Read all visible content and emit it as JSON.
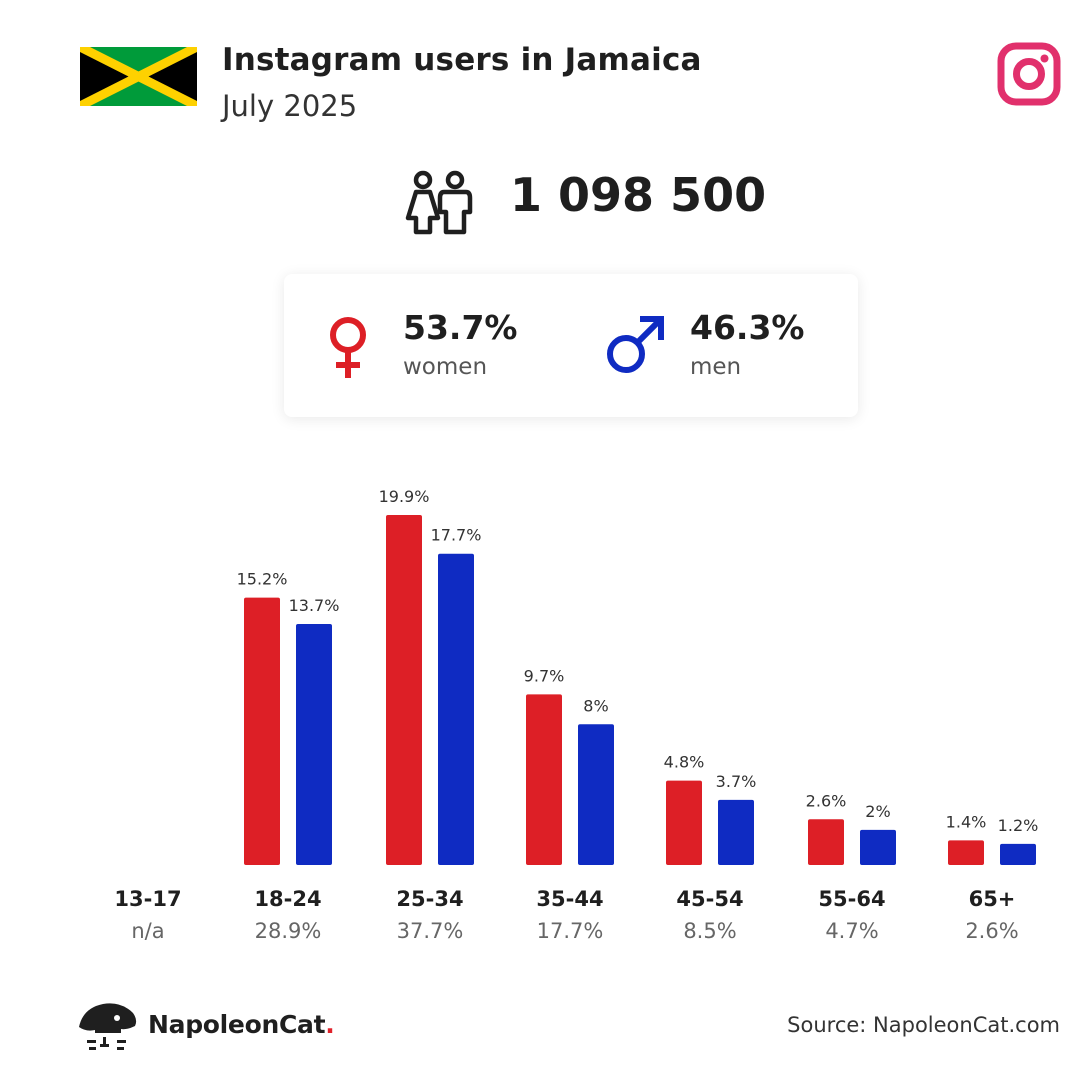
{
  "header": {
    "title": "Instagram users in Jamaica",
    "subtitle": "July 2025",
    "flag_colors": {
      "green": "#009b3a",
      "gold": "#fed100",
      "black": "#000000"
    },
    "brand_icon": "instagram-icon",
    "brand_color": "#e1306c"
  },
  "summary": {
    "total": "1 098 500",
    "total_icon": "people-icon",
    "women": {
      "pct": "53.7%",
      "label": "women",
      "color": "#dd1f26",
      "icon": "female-symbol-icon"
    },
    "men": {
      "pct": "46.3%",
      "label": "men",
      "color": "#0f2bc2",
      "icon": "male-symbol-icon"
    }
  },
  "chart_data": {
    "type": "bar",
    "categories": [
      "13-17",
      "18-24",
      "25-34",
      "35-44",
      "45-54",
      "55-64",
      "65+"
    ],
    "category_totals": [
      "n/a",
      "28.9%",
      "37.7%",
      "17.7%",
      "8.5%",
      "4.7%",
      "2.6%"
    ],
    "series": [
      {
        "values": [
          null,
          15.2,
          19.9,
          9.7,
          4.8,
          2.6,
          1.4
        ],
        "labels": [
          "",
          "15.2%",
          "19.9%",
          "9.7%",
          "4.8%",
          "2.6%",
          "1.4%"
        ],
        "color": "#dd1f26"
      },
      {
        "values": [
          null,
          13.7,
          17.7,
          8,
          3.7,
          2,
          1.2
        ],
        "labels": [
          "",
          "13.7%",
          "17.7%",
          "8%",
          "3.7%",
          "2%",
          "1.2%"
        ],
        "color": "#0f2bc2"
      }
    ],
    "ylim": [
      0,
      20
    ],
    "grid": false,
    "legend": "none"
  },
  "footer": {
    "brand_name": "NapoleonCat",
    "brand_dot": ".",
    "logo_icon": "napoleoncat-logo-icon",
    "source": "Source: NapoleonCat.com"
  }
}
